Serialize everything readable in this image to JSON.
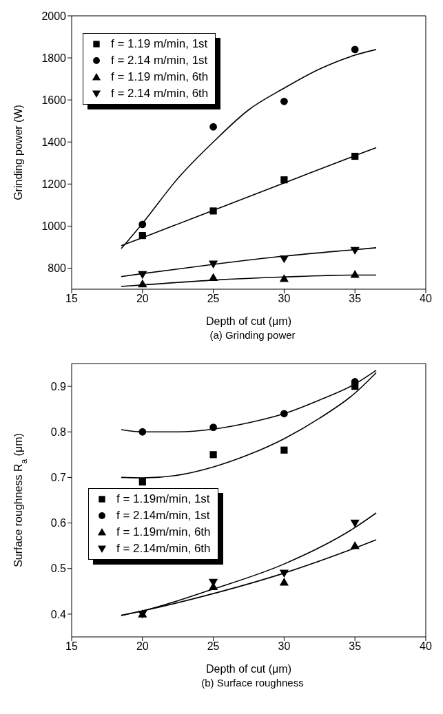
{
  "chart_data": [
    {
      "type": "scatter",
      "xlabel": "Depth of cut (μm)",
      "ylabel": "Grinding power (W)",
      "annotations": [
        "(a) Grinding power"
      ],
      "xlim": [
        15,
        40
      ],
      "xticks": [
        15,
        20,
        25,
        30,
        35,
        40
      ],
      "ylim": [
        700,
        2000
      ],
      "yticks": [
        800,
        1000,
        1200,
        1400,
        1600,
        1800,
        2000
      ],
      "legend": "top left",
      "series": [
        {
          "name": "f = 1.19 m/min, 1st",
          "color": "#000000",
          "marker": "square",
          "x": [
            20,
            25,
            30,
            35
          ],
          "values": [
            955,
            1072,
            1220,
            1332
          ]
        },
        {
          "name": "f = 2.14 m/min, 1st",
          "color": "#000000",
          "marker": "circle",
          "x": [
            20,
            25,
            30,
            35
          ],
          "values": [
            1008,
            1472,
            1593,
            1840
          ]
        },
        {
          "name": "f = 1.19 m/min, 6th",
          "color": "#000000",
          "marker": "triangle",
          "x": [
            20,
            25,
            30,
            35
          ],
          "values": [
            725,
            755,
            750,
            770
          ]
        },
        {
          "name": "f = 2.14 m/min, 6th",
          "color": "#000000",
          "marker": "triangle-down",
          "x": [
            20,
            25,
            30,
            35
          ],
          "values": [
            770,
            820,
            845,
            885
          ]
        },
        {
          "type": "line",
          "color": "#000000",
          "marker": "none",
          "x": [
            18.5,
            20,
            25,
            30,
            35,
            36.5
          ],
          "values": [
            907,
            945,
            1075,
            1205,
            1335,
            1373
          ]
        },
        {
          "type": "line",
          "color": "#000000",
          "marker": "none",
          "x": [
            18.5,
            20,
            22.5,
            25,
            27.5,
            30,
            32.5,
            35,
            36.5
          ],
          "values": [
            893,
            1013,
            1227,
            1400,
            1553,
            1656,
            1747,
            1813,
            1840
          ]
        },
        {
          "type": "line",
          "color": "#000000",
          "marker": "none",
          "x": [
            18.5,
            20,
            25,
            30,
            35,
            36.5
          ],
          "values": [
            713,
            720,
            743,
            758,
            767,
            767
          ]
        },
        {
          "type": "line",
          "color": "#000000",
          "marker": "none",
          "x": [
            18.5,
            20,
            25,
            30,
            35,
            36.5
          ],
          "values": [
            760,
            774,
            818,
            857,
            888,
            897
          ]
        }
      ]
    },
    {
      "type": "scatter",
      "xlabel": "Depth of cut (μm)",
      "ylabel": "Surface roughness  R$_{a}$ (μm)",
      "annotations": [
        "(b) Surface roughness"
      ],
      "xlim": [
        15,
        40
      ],
      "xticks": [
        15,
        20,
        25,
        30,
        35,
        40
      ],
      "ylim": [
        0.35,
        0.95
      ],
      "yticks": [
        0.4,
        0.5,
        0.6,
        0.7,
        0.8,
        0.9
      ],
      "legend": "left",
      "series": [
        {
          "name": "f = 1.19m/min, 1st",
          "color": "#000000",
          "marker": "square",
          "x": [
            20,
            25,
            30,
            35
          ],
          "values": [
            0.69,
            0.75,
            0.76,
            0.9
          ]
        },
        {
          "name": "f = 2.14m/min, 1st",
          "color": "#000000",
          "marker": "circle",
          "x": [
            20,
            25,
            30,
            35
          ],
          "values": [
            0.8,
            0.81,
            0.84,
            0.91
          ]
        },
        {
          "name": "f = 1.19m/min, 6th",
          "color": "#000000",
          "marker": "triangle",
          "x": [
            20,
            25,
            30,
            35
          ],
          "values": [
            0.4,
            0.46,
            0.47,
            0.55
          ]
        },
        {
          "name": "f = 2.14m/min, 6th",
          "color": "#000000",
          "marker": "triangle-down",
          "x": [
            20,
            25,
            30,
            35
          ],
          "values": [
            0.4,
            0.47,
            0.49,
            0.6
          ]
        },
        {
          "type": "line",
          "color": "#000000",
          "marker": "none",
          "x": [
            18.5,
            20,
            22.5,
            25,
            27.5,
            30,
            32.5,
            35,
            36.5
          ],
          "values": [
            0.7,
            0.699,
            0.705,
            0.723,
            0.75,
            0.785,
            0.83,
            0.885,
            0.93
          ]
        },
        {
          "type": "line",
          "color": "#000000",
          "marker": "none",
          "x": [
            18.5,
            20,
            22.5,
            25,
            27.5,
            30,
            32.5,
            35,
            36.5
          ],
          "values": [
            0.805,
            0.8,
            0.8,
            0.806,
            0.82,
            0.84,
            0.87,
            0.905,
            0.935
          ]
        },
        {
          "type": "line",
          "color": "#000000",
          "marker": "none",
          "x": [
            18.5,
            20,
            25,
            30,
            35,
            36.5
          ],
          "values": [
            0.397,
            0.407,
            0.445,
            0.49,
            0.545,
            0.563
          ]
        },
        {
          "type": "line",
          "color": "#000000",
          "marker": "none",
          "x": [
            18.5,
            20,
            25,
            30,
            35,
            36.5
          ],
          "values": [
            0.397,
            0.407,
            0.455,
            0.51,
            0.59,
            0.622
          ]
        }
      ]
    }
  ]
}
